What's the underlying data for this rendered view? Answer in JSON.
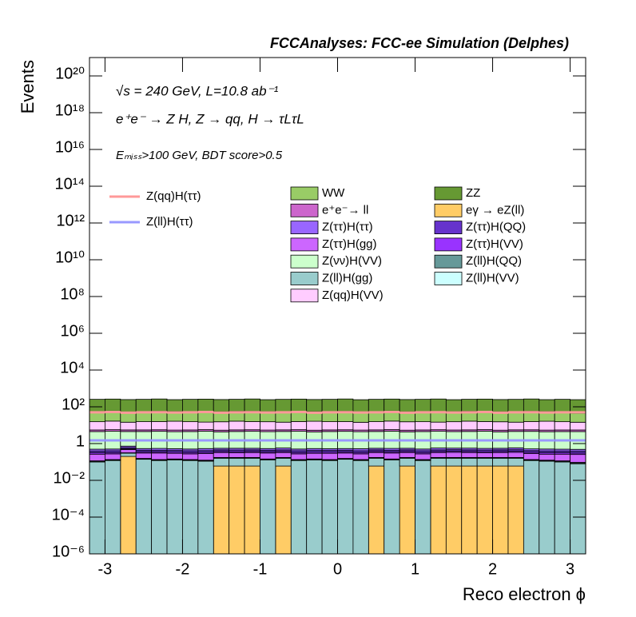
{
  "chart_data": {
    "type": "stacked-histogram",
    "title": "FCCAnalyses: FCC-ee Simulation (Delphes)",
    "x_label": "Reco electron ϕ",
    "y_label": "Events",
    "annotations": [
      "√s = 240 GeV, L=10.8 ab⁻¹",
      "e⁺e⁻ → Z H, Z → qq, H → τLτL",
      "Eₘᵢₛₛ>100 GeV, BDT score>0.5"
    ],
    "log_y": true,
    "bins": [
      -3.2,
      -3.0,
      -2.8,
      -2.6,
      -2.4,
      -2.2,
      -2.0,
      -1.8,
      -1.6,
      -1.4,
      -1.2,
      -1.0,
      -0.8,
      -0.6,
      -0.4,
      -0.2,
      0.0,
      0.2,
      0.4,
      0.6,
      0.8,
      1.0,
      1.2,
      1.4,
      1.6,
      1.8,
      2.0,
      2.2,
      2.4,
      2.6,
      2.8,
      3.0,
      3.2
    ],
    "xlim": [
      -3.2,
      3.2
    ],
    "xticks": [
      -3,
      -2,
      -1,
      0,
      1,
      2,
      3
    ],
    "ylim": [
      1e-06,
      1e+21
    ],
    "yticks": [
      {
        "value": 1e-06,
        "label": "10⁻⁶"
      },
      {
        "value": 0.0001,
        "label": "10⁻⁴"
      },
      {
        "value": 0.01,
        "label": "10⁻²"
      },
      1,
      {
        "value": 100,
        "label": "10²"
      },
      {
        "value": 10000.0,
        "label": "10⁴"
      },
      {
        "value": 1000000.0,
        "label": "10⁶"
      },
      {
        "value": 100000000.0,
        "label": "10⁸"
      },
      {
        "value": 10000000000.0,
        "label": "10¹⁰"
      },
      {
        "value": 1000000000000.0,
        "label": "10¹²"
      },
      {
        "value": 100000000000000.0,
        "label": "10¹⁴"
      },
      {
        "value": 1e+16,
        "label": "10¹⁶"
      },
      {
        "value": 1e+18,
        "label": "10¹⁸"
      },
      {
        "value": 1e+20,
        "label": "10²⁰"
      }
    ],
    "series": [
      {
        "name": "eγ → eZ(ll)",
        "color": "#ffcc66",
        "values": [
          0,
          0,
          0.2,
          0,
          0,
          0,
          0,
          0,
          0.06,
          0.06,
          0.06,
          0,
          0.06,
          0,
          0,
          0,
          0,
          0,
          0.06,
          0,
          0.06,
          0,
          0.06,
          0.06,
          0.06,
          0.06,
          0.06,
          0.06,
          0,
          0,
          0,
          0
        ]
      },
      {
        "name": "Z(ll)H(gg)",
        "color": "#99cccc",
        "values": [
          0.1,
          0.12,
          0.1,
          0.14,
          0.12,
          0.13,
          0.12,
          0.11,
          0.1,
          0.1,
          0.1,
          0.13,
          0.1,
          0.12,
          0.13,
          0.12,
          0.14,
          0.12,
          0.1,
          0.13,
          0.1,
          0.12,
          0.1,
          0.1,
          0.1,
          0.1,
          0.1,
          0.1,
          0.12,
          0.11,
          0.1,
          0.08
        ]
      },
      {
        "name": "Z(ll)H(VV)",
        "color": "#ccffff",
        "values": [
          0.005,
          0.005,
          0.005,
          0.005,
          0.005,
          0.005,
          0.005,
          0.005,
          0.005,
          0.005,
          0.005,
          0.005,
          0.005,
          0.005,
          0.005,
          0.005,
          0.005,
          0.005,
          0.005,
          0.005,
          0.005,
          0.005,
          0.005,
          0.005,
          0.005,
          0.005,
          0.005,
          0.005,
          0.005,
          0.005,
          0.005,
          0.005
        ]
      },
      {
        "name": "Z(ll)H(QQ)",
        "color": "#669999",
        "values": [
          0.01,
          0.01,
          0.01,
          0.01,
          0.01,
          0.01,
          0.01,
          0.01,
          0.01,
          0.01,
          0.01,
          0.01,
          0.01,
          0.01,
          0.01,
          0.01,
          0.01,
          0.01,
          0.01,
          0.01,
          0.01,
          0.01,
          0.01,
          0.01,
          0.01,
          0.01,
          0.01,
          0.01,
          0.01,
          0.01,
          0.01,
          0.01
        ]
      },
      {
        "name": "Z(ττ)H(gg)",
        "color": "#cc66ff",
        "values": [
          0.15,
          0.14,
          0.16,
          0.15,
          0.17,
          0.15,
          0.14,
          0.16,
          0.15,
          0.14,
          0.15,
          0.16,
          0.15,
          0.14,
          0.15,
          0.16,
          0.15,
          0.14,
          0.15,
          0.16,
          0.15,
          0.14,
          0.15,
          0.16,
          0.15,
          0.14,
          0.15,
          0.16,
          0.15,
          0.14,
          0.15,
          0.16
        ]
      },
      {
        "name": "Z(ττ)H(VV)",
        "color": "#9933ff",
        "values": [
          0.05,
          0.05,
          0.05,
          0.05,
          0.05,
          0.05,
          0.05,
          0.05,
          0.05,
          0.05,
          0.05,
          0.05,
          0.05,
          0.05,
          0.05,
          0.05,
          0.05,
          0.05,
          0.05,
          0.05,
          0.05,
          0.05,
          0.05,
          0.05,
          0.05,
          0.05,
          0.05,
          0.05,
          0.05,
          0.05,
          0.05,
          0.05
        ]
      },
      {
        "name": "Z(ττ)H(QQ)",
        "color": "#6633cc",
        "values": [
          0.08,
          0.08,
          0.08,
          0.08,
          0.08,
          0.08,
          0.08,
          0.08,
          0.08,
          0.08,
          0.08,
          0.08,
          0.08,
          0.08,
          0.08,
          0.08,
          0.08,
          0.08,
          0.08,
          0.08,
          0.08,
          0.08,
          0.08,
          0.08,
          0.08,
          0.08,
          0.08,
          0.08,
          0.08,
          0.08,
          0.08,
          0.08
        ]
      },
      {
        "name": "Z(ττ)H(ττ)",
        "color": "#9966ff",
        "values": [
          0.1,
          0.1,
          0.12,
          0.1,
          0.11,
          0.1,
          0.1,
          0.12,
          0.1,
          0.11,
          0.1,
          0.1,
          0.12,
          0.1,
          0.11,
          0.1,
          0.1,
          0.12,
          0.1,
          0.11,
          0.1,
          0.1,
          0.12,
          0.1,
          0.11,
          0.1,
          0.1,
          0.12,
          0.1,
          0.11,
          0.1,
          0.1
        ]
      },
      {
        "name": "Z(νν)H(VV)",
        "color": "#ccffcc",
        "values": [
          4,
          4.2,
          3.8,
          4,
          4.1,
          3.9,
          4,
          4.2,
          3.8,
          4,
          4.1,
          3.9,
          4,
          4.2,
          3.8,
          4,
          4.1,
          3.9,
          4,
          4.2,
          3.8,
          4,
          4.1,
          3.9,
          4,
          4.2,
          3.8,
          4,
          4.1,
          3.9,
          4,
          4
        ]
      },
      {
        "name": "e⁺e⁻→ ll",
        "color": "#cc66cc",
        "values": [
          1,
          1,
          1,
          1,
          1,
          1,
          1,
          1,
          1,
          1,
          1,
          1,
          1,
          1,
          1,
          1,
          1,
          1,
          1,
          1,
          1,
          1,
          1,
          1,
          1,
          1,
          1,
          1,
          1,
          1,
          1,
          1
        ]
      },
      {
        "name": "Z(qq)H(VV)",
        "color": "#ffccff",
        "values": [
          10,
          11,
          9,
          10,
          10,
          11,
          10,
          9,
          10,
          11,
          10,
          10,
          9,
          10,
          11,
          10,
          10,
          9,
          10,
          11,
          10,
          10,
          9,
          10,
          11,
          10,
          10,
          9,
          10,
          11,
          10,
          9
        ]
      },
      {
        "name": "WW",
        "color": "#99cc66",
        "values": [
          40,
          42,
          38,
          40,
          41,
          39,
          40,
          42,
          38,
          40,
          41,
          39,
          40,
          42,
          38,
          40,
          41,
          39,
          40,
          42,
          38,
          40,
          41,
          39,
          40,
          42,
          38,
          40,
          41,
          39,
          40,
          30
        ]
      },
      {
        "name": "ZZ",
        "color": "#669933",
        "values": [
          200,
          205,
          195,
          200,
          210,
          190,
          200,
          205,
          195,
          200,
          210,
          190,
          200,
          205,
          195,
          200,
          210,
          190,
          200,
          205,
          195,
          200,
          210,
          190,
          200,
          205,
          195,
          200,
          210,
          190,
          200,
          200
        ]
      }
    ],
    "signals": [
      {
        "name": "Z(qq)H(ττ)",
        "color": "#ff9999",
        "values": [
          50,
          52,
          48,
          50,
          51,
          49,
          50,
          52,
          48,
          50,
          51,
          49,
          50,
          52,
          48,
          50,
          51,
          49,
          50,
          52,
          48,
          50,
          51,
          49,
          50,
          52,
          48,
          50,
          51,
          49,
          50,
          50
        ]
      },
      {
        "name": "Z(ll)H(ττ)",
        "color": "#9999ff",
        "values": [
          1.5,
          1.5,
          1.5,
          1.5,
          1.5,
          1.5,
          1.5,
          1.5,
          1.5,
          1.5,
          1.5,
          1.5,
          1.5,
          1.5,
          1.5,
          1.5,
          1.5,
          1.5,
          1.5,
          1.5,
          1.5,
          1.5,
          1.5,
          1.5,
          1.5,
          1.5,
          1.5,
          1.5,
          1.5,
          1.5,
          1.5,
          1.5
        ]
      }
    ]
  }
}
